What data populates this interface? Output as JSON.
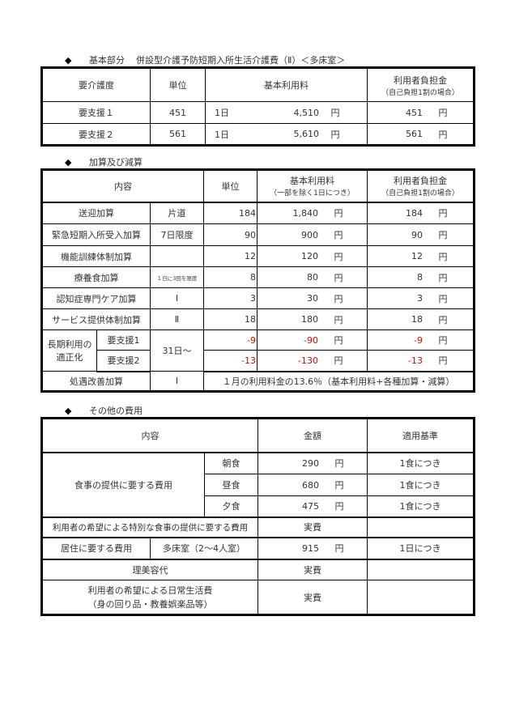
{
  "section1": {
    "bullet": "◆",
    "title": "基本部分",
    "subtitle": "併設型介護予防短期入所生活介護費（Ⅱ）＜多床室＞",
    "headers": [
      "要介護度",
      "単位",
      "基本利用料",
      "利用者負担金",
      "（自己負担1割の場合）"
    ],
    "rows": [
      {
        "level": "要支援１",
        "units": "451",
        "per": "1日",
        "fee": "4,510",
        "yen": "円",
        "burden": "451",
        "burden_yen": "円"
      },
      {
        "level": "要支援２",
        "units": "561",
        "per": "1日",
        "fee": "5,610",
        "yen": "円",
        "burden": "561",
        "burden_yen": "円"
      }
    ]
  },
  "section2": {
    "bullet": "◆",
    "title": "加算及び減算",
    "headers": [
      "内容",
      "単位",
      "基本利用料",
      "（一部を除く1日につき）",
      "利用者負担金",
      "（自己負担1割の場合）"
    ],
    "rows": [
      {
        "name": "送迎加算",
        "cond": "片道",
        "units": "184",
        "fee": "1,840",
        "burden": "184"
      },
      {
        "name": "緊急短期入所受入加算",
        "cond": "7日限度",
        "units": "90",
        "fee": "900",
        "burden": "90"
      },
      {
        "name": "機能訓練体制加算",
        "cond": "",
        "units": "12",
        "fee": "120",
        "burden": "12"
      },
      {
        "name": "療養食加算",
        "cond": "１日に3回を限度",
        "units": "8",
        "fee": "80",
        "burden": "8"
      },
      {
        "name": "認知症専門ケア加算",
        "cond": "Ⅰ",
        "units": "3",
        "fee": "30",
        "burden": "3"
      },
      {
        "name": "サービス提供体制加算",
        "cond": "Ⅱ",
        "units": "18",
        "fee": "180",
        "burden": "18"
      }
    ],
    "long_term": {
      "label_line1": "長期利用の",
      "label_line2": "適正化",
      "cond": "31日～",
      "rows": [
        {
          "level": "要支援1",
          "units": "-9",
          "fee": "-90",
          "burden": "-9"
        },
        {
          "level": "要支援2",
          "units": "-13",
          "fee": "-130",
          "burden": "-13"
        }
      ]
    },
    "treatment": {
      "name": "処遇改善加算",
      "cond": "Ⅰ",
      "note": "１月の利用料金の13.6％（基本利用料+各種加算・減算）"
    },
    "yen": "円",
    "negative_color": "#e00000"
  },
  "section3": {
    "bullet": "◆",
    "title": "その他の費用",
    "headers": [
      "内容",
      "金額",
      "適用基準"
    ],
    "meals": {
      "label": "食事の提供に要する費用",
      "rows": [
        {
          "meal": "朝食",
          "amount": "290",
          "basis": "1食につき"
        },
        {
          "meal": "昼食",
          "amount": "680",
          "basis": "1食につき"
        },
        {
          "meal": "夕食",
          "amount": "475",
          "basis": "1食につき"
        }
      ]
    },
    "special_meal": {
      "label": "利用者の希望による特別な食事の提供に要する費用",
      "amount": "実費"
    },
    "residence": {
      "label": "居住に要する費用",
      "room": "多床室（2～4人室）",
      "amount": "915",
      "basis": "1日につき"
    },
    "barber": {
      "label": "理美容代",
      "amount": "実費"
    },
    "daily": {
      "label_line1": "利用者の希望による日常生活費",
      "label_line2": "（身の回り品・教養娯楽品等）",
      "amount": "実費"
    },
    "yen": "円"
  }
}
